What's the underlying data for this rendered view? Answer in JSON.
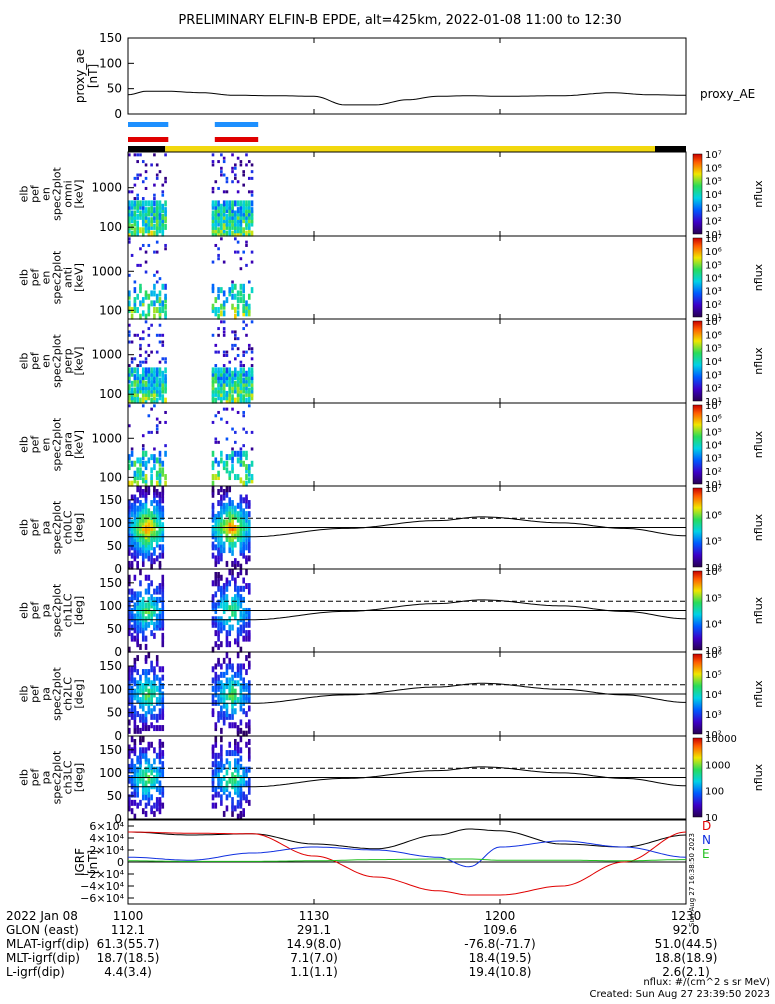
{
  "title": "PRELIMINARY ELFIN-B EPDE, alt=425km, 2022-01-08 11:00 to 12:30",
  "colorbar_label": "nflux",
  "chart_data": {
    "type": "multi-panel-spectrogram",
    "time_axis": {
      "labels": [
        "1100",
        "1130",
        "1200",
        "1230"
      ],
      "start_label": "2022 Jan 08",
      "range_minutes": [
        0,
        90
      ]
    },
    "science_zone_bars": {
      "blue": [
        [
          0,
          6.5
        ],
        [
          14,
          21
        ]
      ],
      "red": [
        [
          0,
          6.5
        ],
        [
          14,
          21
        ]
      ],
      "state_bar": [
        {
          "from": 0,
          "to": 6,
          "color": "#000000"
        },
        {
          "from": 6,
          "to": 85,
          "color": "#f2d80e"
        },
        {
          "from": 85,
          "to": 90,
          "color": "#000000"
        }
      ]
    },
    "proxy_ae": {
      "ylabel": "proxy_ae [nT]",
      "legend": "proxy_AE",
      "ylim": [
        0,
        150
      ],
      "yticks": [
        "0",
        "50",
        "100",
        "150"
      ],
      "t": [
        0,
        3,
        6,
        12,
        17,
        24,
        30,
        35,
        40,
        45,
        50,
        55,
        60,
        70,
        78,
        84,
        90
      ],
      "values": [
        38,
        45,
        45,
        42,
        37,
        36,
        35,
        18,
        18,
        28,
        35,
        36,
        35,
        36,
        42,
        38,
        37
      ]
    },
    "energy_spectrograms": [
      {
        "label_lines": [
          "elb",
          "pef",
          "en",
          "spec2plot",
          "omni",
          "[keV]"
        ],
        "yticks": [
          "100",
          "1000"
        ],
        "cbar_ticks": [
          "10^7",
          "10^6",
          "10^5",
          "10^4",
          "10^3",
          "10^2",
          "10^1"
        ]
      },
      {
        "label_lines": [
          "elb",
          "pef",
          "en",
          "spec2plot",
          "anti",
          "[keV]"
        ],
        "yticks": [
          "100",
          "1000"
        ],
        "cbar_ticks": [
          "10^7",
          "10^6",
          "10^5",
          "10^4",
          "10^3",
          "10^2",
          "10^1"
        ]
      },
      {
        "label_lines": [
          "elb",
          "pef",
          "en",
          "spec2plot",
          "perp",
          "[keV]"
        ],
        "yticks": [
          "100",
          "1000"
        ],
        "cbar_ticks": [
          "10^7",
          "10^6",
          "10^5",
          "10^4",
          "10^3",
          "10^2",
          "10^1"
        ]
      },
      {
        "label_lines": [
          "elb",
          "pef",
          "en",
          "spec2plot",
          "para",
          "[keV]"
        ],
        "yticks": [
          "100",
          "1000"
        ],
        "cbar_ticks": [
          "10^7",
          "10^6",
          "10^5",
          "10^4",
          "10^3",
          "10^2",
          "10^1"
        ]
      }
    ],
    "pitch_angle_spectrograms": [
      {
        "label_lines": [
          "elb",
          "pef",
          "pa",
          "spec2plot",
          "ch0LC",
          "[deg]"
        ],
        "yticks": [
          "0",
          "50",
          "100",
          "150"
        ],
        "cbar_ticks": [
          "10^7",
          "10^6",
          "10^5",
          "10^4"
        ]
      },
      {
        "label_lines": [
          "elb",
          "pef",
          "pa",
          "spec2plot",
          "ch1LC",
          "[deg]"
        ],
        "yticks": [
          "0",
          "50",
          "100",
          "150"
        ],
        "cbar_ticks": [
          "10^6",
          "10^5",
          "10^4",
          "10^3"
        ]
      },
      {
        "label_lines": [
          "elb",
          "pef",
          "pa",
          "spec2plot",
          "ch2LC",
          "[deg]"
        ],
        "yticks": [
          "0",
          "50",
          "100",
          "150"
        ],
        "cbar_ticks": [
          "10^6",
          "10^5",
          "10^4",
          "10^3",
          "10^2"
        ]
      },
      {
        "label_lines": [
          "elb",
          "pef",
          "pa",
          "spec2plot",
          "ch3LC",
          "[deg]"
        ],
        "yticks": [
          "0",
          "50",
          "100",
          "150"
        ],
        "cbar_ticks": [
          "10000",
          "1000",
          "100",
          "10"
        ]
      }
    ],
    "loss_cone_curves": {
      "t": [
        0,
        10,
        20,
        35,
        50,
        57,
        70,
        80,
        90
      ],
      "solid_upper": [
        90,
        90,
        90,
        90,
        90,
        90,
        90,
        90,
        90
      ],
      "dashed": [
        110,
        110,
        110,
        110,
        110,
        110,
        110,
        110,
        110
      ],
      "lower": [
        70,
        70,
        70,
        88,
        105,
        113,
        100,
        88,
        72
      ]
    },
    "igrf": {
      "ylabel": "IGRF [nT]",
      "ylim": [
        -70000,
        70000
      ],
      "yticks": [
        "6×10⁴",
        "4×10⁴",
        "2×10⁴",
        "0",
        "−2×10⁴",
        "−4×10⁴",
        "−6×10⁴"
      ],
      "legend": [
        "D",
        "N",
        "E"
      ],
      "t": [
        0,
        10,
        20,
        30,
        40,
        50,
        55,
        60,
        70,
        80,
        90
      ],
      "D": [
        50000,
        48000,
        47000,
        10000,
        -25000,
        -48000,
        -55000,
        -55000,
        -40000,
        0,
        50000
      ],
      "N": [
        8000,
        3000,
        15000,
        25000,
        20000,
        8000,
        -8000,
        25000,
        35000,
        25000,
        8000
      ],
      "E": [
        2000,
        1000,
        1000,
        2000,
        4000,
        5000,
        5000,
        3000,
        3000,
        2000,
        4000
      ],
      "H": [
        50000,
        45000,
        47000,
        30000,
        22000,
        45000,
        55000,
        52000,
        30000,
        25000,
        45000
      ]
    },
    "ephemeris": [
      {
        "label": "2022 Jan 08",
        "values": [
          "1100",
          "1130",
          "1200",
          "1230"
        ]
      },
      {
        "label": "GLON (east)",
        "values": [
          "112.1",
          "291.1",
          "109.6",
          "92.0"
        ]
      },
      {
        "label": "MLAT-igrf(dip)",
        "values": [
          "61.3(55.7)",
          "14.9(8.0)",
          "-76.8(-71.7)",
          "51.0(44.5)"
        ]
      },
      {
        "label": "MLT-igrf(dip)",
        "values": [
          "18.7(18.5)",
          "7.1(7.0)",
          "18.4(19.5)",
          "18.8(18.9)"
        ]
      },
      {
        "label": "L-igrf(dip)",
        "values": [
          "4.4(3.4)",
          "1.1(1.1)",
          "19.4(10.8)",
          "2.6(2.1)"
        ]
      }
    ]
  },
  "footer": {
    "units": "nflux: #/(cm^2 s sr MeV)",
    "created": "Created: Sun Aug 27 23:39:50 2023",
    "side_stamp": "Sun Aug 27 16:38:50 2023"
  }
}
